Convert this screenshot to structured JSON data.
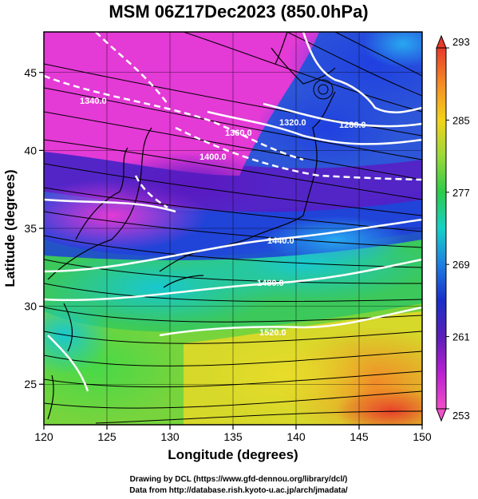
{
  "title": "MSM 06Z17Dec2023 (850.0hPa)",
  "map": {
    "xlabel": "Longitude (degrees)",
    "ylabel": "Latitude (degrees)",
    "x_range": [
      120,
      150
    ],
    "y_range": [
      22.4,
      47.6
    ],
    "x_ticks": [
      "120",
      "125",
      "130",
      "135",
      "140",
      "145",
      "150"
    ],
    "y_ticks": [
      "25",
      "30",
      "35",
      "40",
      "45"
    ],
    "grid": true,
    "field": "temperature shading with wind streamlines and geopotential height contours"
  },
  "colorbar": {
    "labels": [
      "293",
      "285",
      "277",
      "269",
      "261",
      "253"
    ],
    "colors_top_to_bottom": [
      "#e63a2a",
      "#f48c26",
      "#f2d21c",
      "#9ad83a",
      "#2ecb4a",
      "#16d0c8",
      "#1f7fe0",
      "#1a2fc8",
      "#5a1fb8",
      "#b81fd0",
      "#f050c8"
    ]
  },
  "contours": [
    {
      "label": "1340.0"
    },
    {
      "label": "1360.0"
    },
    {
      "label": "1320.0"
    },
    {
      "label": "1280.0"
    },
    {
      "label": "1400.0"
    },
    {
      "label": "1440.0"
    },
    {
      "label": "1480.0"
    },
    {
      "label": "1520.0"
    }
  ],
  "credits": [
    "Drawing by DCL (https://www.gfd-dennou.org/library/dcl/)",
    "Data from http://database.rish.kyoto-u.ac.jp/arch/jmadata/"
  ]
}
